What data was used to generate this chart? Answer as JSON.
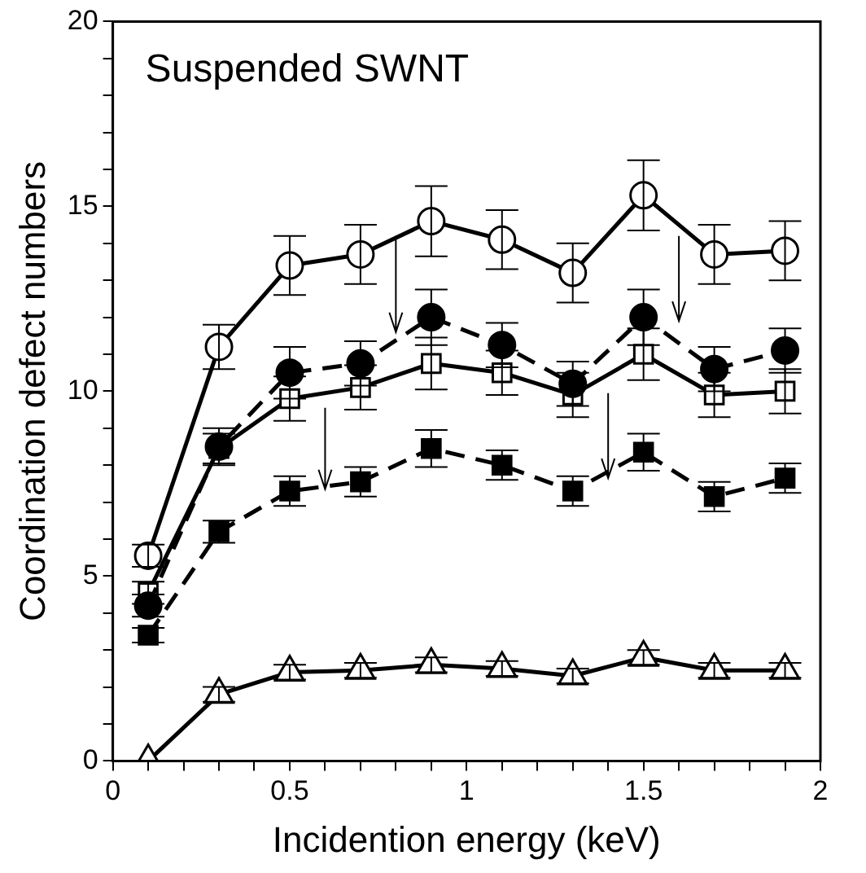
{
  "chart_data": {
    "type": "line",
    "xlabel": "Incidention energy (keV)",
    "ylabel": "Coordination defect numbers",
    "annotations": [
      "Suspended SWNT"
    ],
    "x": [
      0.1,
      0.3,
      0.5,
      0.7,
      0.9,
      1.1,
      1.3,
      1.5,
      1.7,
      1.9
    ],
    "xlim": [
      0,
      2
    ],
    "ylim": [
      0,
      20
    ],
    "xticks": [
      0,
      {
        "value": 0.1,
        "label": null
      },
      {
        "value": 0.2,
        "label": null
      },
      {
        "value": 0.3,
        "label": null
      },
      {
        "value": 0.4,
        "label": null
      },
      0.5,
      {
        "value": 0.6,
        "label": null
      },
      {
        "value": 0.7,
        "label": null
      },
      {
        "value": 0.8,
        "label": null
      },
      {
        "value": 0.9,
        "label": null
      },
      1,
      {
        "value": 1.1,
        "label": null
      },
      {
        "value": 1.2,
        "label": null
      },
      {
        "value": 1.3,
        "label": null
      },
      {
        "value": 1.4,
        "label": null
      },
      1.5,
      {
        "value": 1.6,
        "label": null
      },
      {
        "value": 1.7,
        "label": null
      },
      {
        "value": 1.8,
        "label": null
      },
      {
        "value": 1.9,
        "label": null
      },
      2
    ],
    "yticks": [
      0,
      {
        "value": 1,
        "label": null
      },
      {
        "value": 2,
        "label": null
      },
      {
        "value": 3,
        "label": null
      },
      {
        "value": 4,
        "label": null
      },
      5,
      {
        "value": 6,
        "label": null
      },
      {
        "value": 7,
        "label": null
      },
      {
        "value": 8,
        "label": null
      },
      {
        "value": 9,
        "label": null
      },
      10,
      {
        "value": 11,
        "label": null
      },
      {
        "value": 12,
        "label": null
      },
      {
        "value": 13,
        "label": null
      },
      {
        "value": 14,
        "label": null
      },
      15,
      {
        "value": 16,
        "label": null
      },
      {
        "value": 17,
        "label": null
      },
      {
        "value": 18,
        "label": null
      },
      {
        "value": 19,
        "label": null
      },
      20
    ],
    "grid": false,
    "legend": false,
    "series": [
      {
        "color": "#000000",
        "marker": "circle",
        "line_style": "solid",
        "values": [
          5.55,
          11.2,
          13.4,
          13.7,
          14.6,
          14.1,
          13.2,
          15.3,
          13.7,
          13.8
        ],
        "errors": [
          0.3,
          0.6,
          0.8,
          0.8,
          0.95,
          0.8,
          0.8,
          0.95,
          0.8,
          0.8
        ]
      },
      {
        "color": "#000000",
        "marker": "circle",
        "line_style": "dashed",
        "values": [
          4.2,
          8.5,
          10.5,
          10.75,
          12.0,
          11.25,
          10.2,
          12.0,
          10.6,
          11.1
        ],
        "errors": [
          0.3,
          0.5,
          0.7,
          0.6,
          0.75,
          0.6,
          0.6,
          0.75,
          0.6,
          0.6
        ]
      },
      {
        "color": "#000000",
        "marker": "square",
        "line_style": "solid",
        "values": [
          4.55,
          8.45,
          9.8,
          10.1,
          10.75,
          10.5,
          9.9,
          11.0,
          9.9,
          10.0
        ],
        "errors": [
          0.3,
          0.4,
          0.6,
          0.6,
          0.7,
          0.6,
          0.6,
          0.7,
          0.6,
          0.6
        ]
      },
      {
        "color": "#000000",
        "marker": "square",
        "line_style": "dashed",
        "values": [
          3.4,
          6.2,
          7.3,
          7.55,
          8.45,
          8.0,
          7.3,
          8.35,
          7.15,
          7.65
        ],
        "errors": [
          0.2,
          0.3,
          0.4,
          0.4,
          0.5,
          0.4,
          0.4,
          0.5,
          0.4,
          0.4
        ]
      },
      {
        "color": "#000000",
        "marker": "triangle",
        "line_style": "solid",
        "values": [
          0.0,
          1.8,
          2.4,
          2.45,
          2.6,
          2.5,
          2.3,
          2.8,
          2.45,
          2.45
        ],
        "errors": [
          null,
          0.2,
          0.2,
          0.2,
          0.2,
          0.2,
          0.2,
          0.2,
          0.2,
          0.2
        ]
      }
    ]
  }
}
